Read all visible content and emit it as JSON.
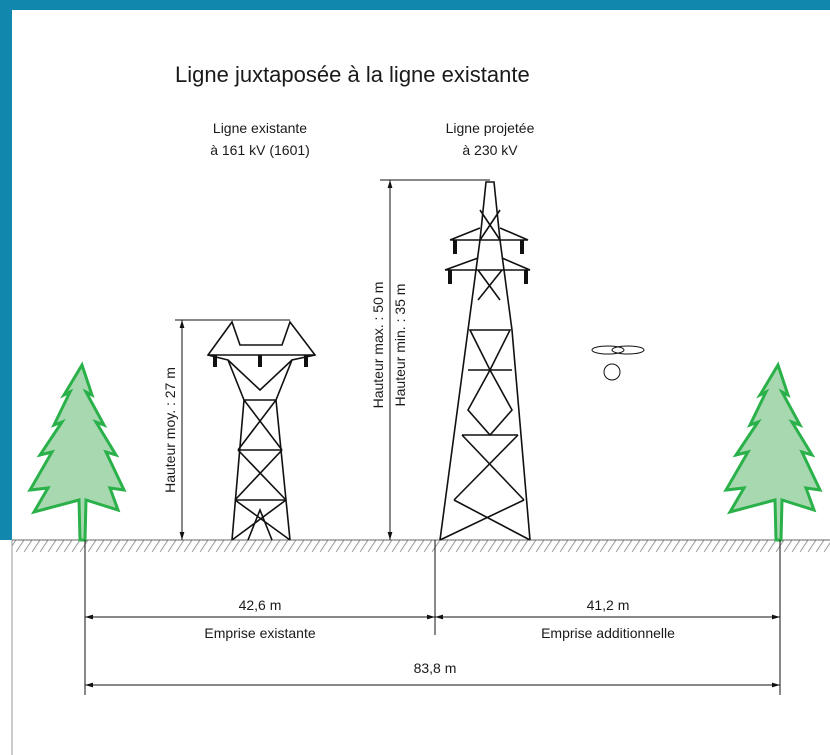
{
  "title": "Ligne juxtaposée à la ligne existante",
  "existing_line": {
    "label": [
      "Ligne existante",
      "à 161 kV (1601)"
    ],
    "height": "Hauteur moy. : 27 m"
  },
  "projected_line": {
    "label": [
      "Ligne projetée",
      "à 230 kV"
    ],
    "height_max": "Hauteur max. : 50 m",
    "height_min": "Hauteur min. : 35 m"
  },
  "right_of_way": {
    "existing": {
      "width": "42,6 m",
      "label": "Emprise existante"
    },
    "additional": {
      "width": "41,2 m",
      "label": "Emprise additionnelle"
    },
    "total": {
      "width": "83,8 m"
    }
  }
}
